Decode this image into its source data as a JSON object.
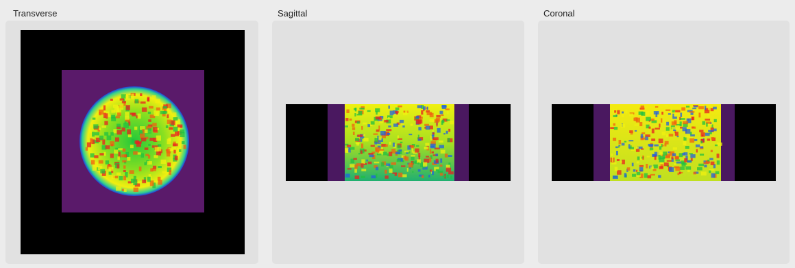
{
  "panels": [
    {
      "title": "Transverse"
    },
    {
      "title": "Sagittal"
    },
    {
      "title": "Coronal"
    }
  ]
}
